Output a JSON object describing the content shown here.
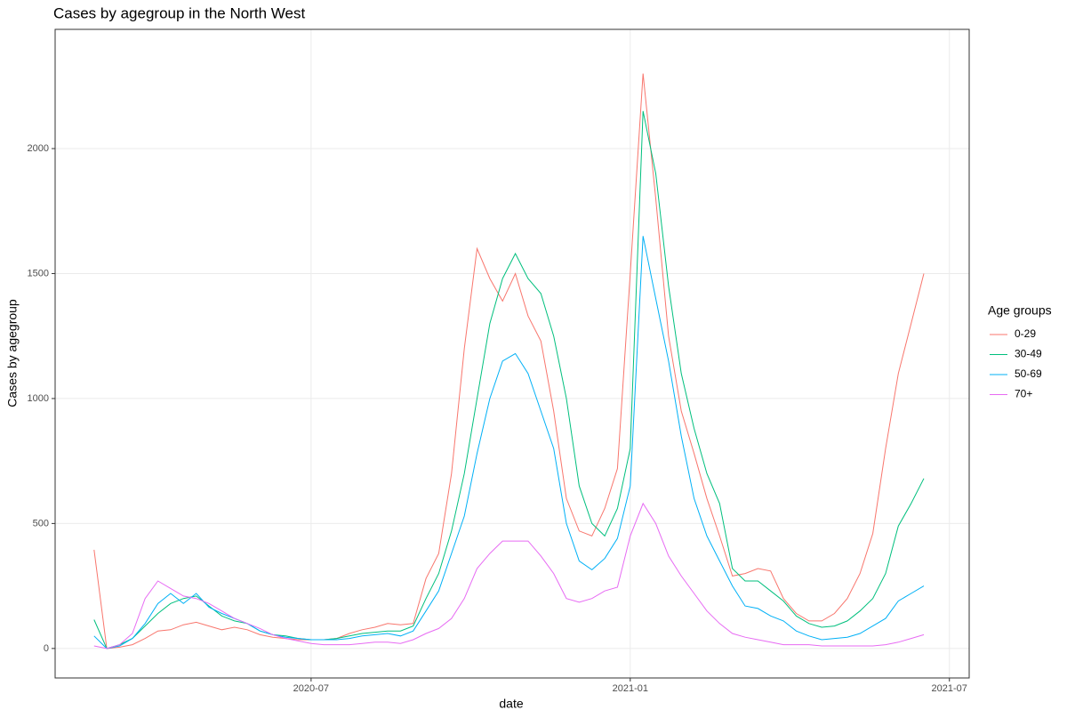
{
  "chart_data": {
    "type": "line",
    "title": "Cases by agegroup in the North West",
    "x_label": "date",
    "y_label": "Cases by agegroup",
    "legend_title": "Age groups",
    "legend_position": "right",
    "grid": true,
    "x": [
      2020.16,
      2020.18,
      2020.2,
      2020.22,
      2020.24,
      2020.26,
      2020.28,
      2020.3,
      2020.32,
      2020.34,
      2020.36,
      2020.38,
      2020.4,
      2020.42,
      2020.44,
      2020.46,
      2020.48,
      2020.5,
      2020.52,
      2020.54,
      2020.56,
      2020.58,
      2020.6,
      2020.62,
      2020.64,
      2020.66,
      2020.68,
      2020.7,
      2020.72,
      2020.74,
      2020.76,
      2020.78,
      2020.8,
      2020.82,
      2020.84,
      2020.86,
      2020.88,
      2020.9,
      2020.92,
      2020.94,
      2020.96,
      2020.98,
      2021.0,
      2021.02,
      2021.04,
      2021.06,
      2021.08,
      2021.1,
      2021.12,
      2021.14,
      2021.16,
      2021.18,
      2021.2,
      2021.22,
      2021.24,
      2021.26,
      2021.28,
      2021.3,
      2021.32,
      2021.34,
      2021.36,
      2021.38,
      2021.4,
      2021.42,
      2021.44,
      2021.46
    ],
    "xlim": [
      2020.099,
      2021.531
    ],
    "xticks": [
      {
        "value": 2020.5,
        "label": "2020-07"
      },
      {
        "value": 2021.0,
        "label": "2021-01"
      },
      {
        "value": 2021.5,
        "label": "2021-07"
      }
    ],
    "ylim": [
      -118,
      2477
    ],
    "yticks": [
      0,
      500,
      1000,
      1500,
      2000
    ],
    "series": [
      {
        "name": "0-29",
        "color": "#F8766D",
        "values": [
          395,
          0,
          5,
          15,
          40,
          70,
          75,
          95,
          105,
          90,
          75,
          85,
          75,
          55,
          45,
          40,
          35,
          35,
          35,
          40,
          60,
          75,
          85,
          100,
          95,
          100,
          280,
          380,
          700,
          1200,
          1600,
          1480,
          1390,
          1500,
          1330,
          1230,
          950,
          600,
          470,
          450,
          560,
          720,
          1500,
          2300,
          1800,
          1250,
          950,
          780,
          600,
          450,
          290,
          300,
          320,
          310,
          200,
          140,
          110,
          110,
          140,
          200,
          300,
          460,
          800,
          1100,
          1300,
          1500
        ]
      },
      {
        "name": "30-49",
        "color": "#00BF7D",
        "values": [
          115,
          0,
          15,
          40,
          90,
          140,
          180,
          200,
          210,
          170,
          130,
          110,
          100,
          70,
          55,
          50,
          40,
          35,
          35,
          40,
          50,
          60,
          65,
          70,
          70,
          90,
          200,
          300,
          470,
          700,
          1000,
          1300,
          1480,
          1580,
          1480,
          1420,
          1250,
          1000,
          650,
          500,
          450,
          560,
          800,
          2150,
          1900,
          1450,
          1100,
          880,
          700,
          580,
          320,
          270,
          270,
          230,
          190,
          130,
          100,
          85,
          90,
          110,
          150,
          200,
          300,
          490,
          580,
          680
        ]
      },
      {
        "name": "50-69",
        "color": "#00B0F6",
        "values": [
          50,
          0,
          10,
          40,
          100,
          180,
          220,
          180,
          220,
          165,
          140,
          120,
          100,
          70,
          55,
          45,
          40,
          35,
          35,
          35,
          40,
          50,
          55,
          60,
          50,
          70,
          150,
          230,
          380,
          530,
          780,
          1000,
          1150,
          1180,
          1100,
          950,
          800,
          500,
          350,
          315,
          360,
          440,
          650,
          1650,
          1400,
          1150,
          850,
          600,
          450,
          350,
          250,
          170,
          160,
          130,
          110,
          70,
          50,
          35,
          40,
          45,
          60,
          90,
          120,
          190,
          220,
          250
        ]
      },
      {
        "name": "70+",
        "color": "#E76BF3",
        "values": [
          10,
          0,
          15,
          60,
          200,
          270,
          240,
          210,
          200,
          180,
          150,
          120,
          100,
          80,
          55,
          40,
          30,
          20,
          15,
          15,
          15,
          20,
          25,
          25,
          20,
          35,
          60,
          80,
          120,
          200,
          320,
          380,
          430,
          430,
          430,
          370,
          300,
          200,
          185,
          200,
          230,
          245,
          450,
          580,
          500,
          370,
          290,
          220,
          150,
          100,
          60,
          45,
          35,
          25,
          15,
          15,
          15,
          10,
          10,
          10,
          10,
          10,
          15,
          25,
          40,
          55
        ]
      }
    ]
  }
}
